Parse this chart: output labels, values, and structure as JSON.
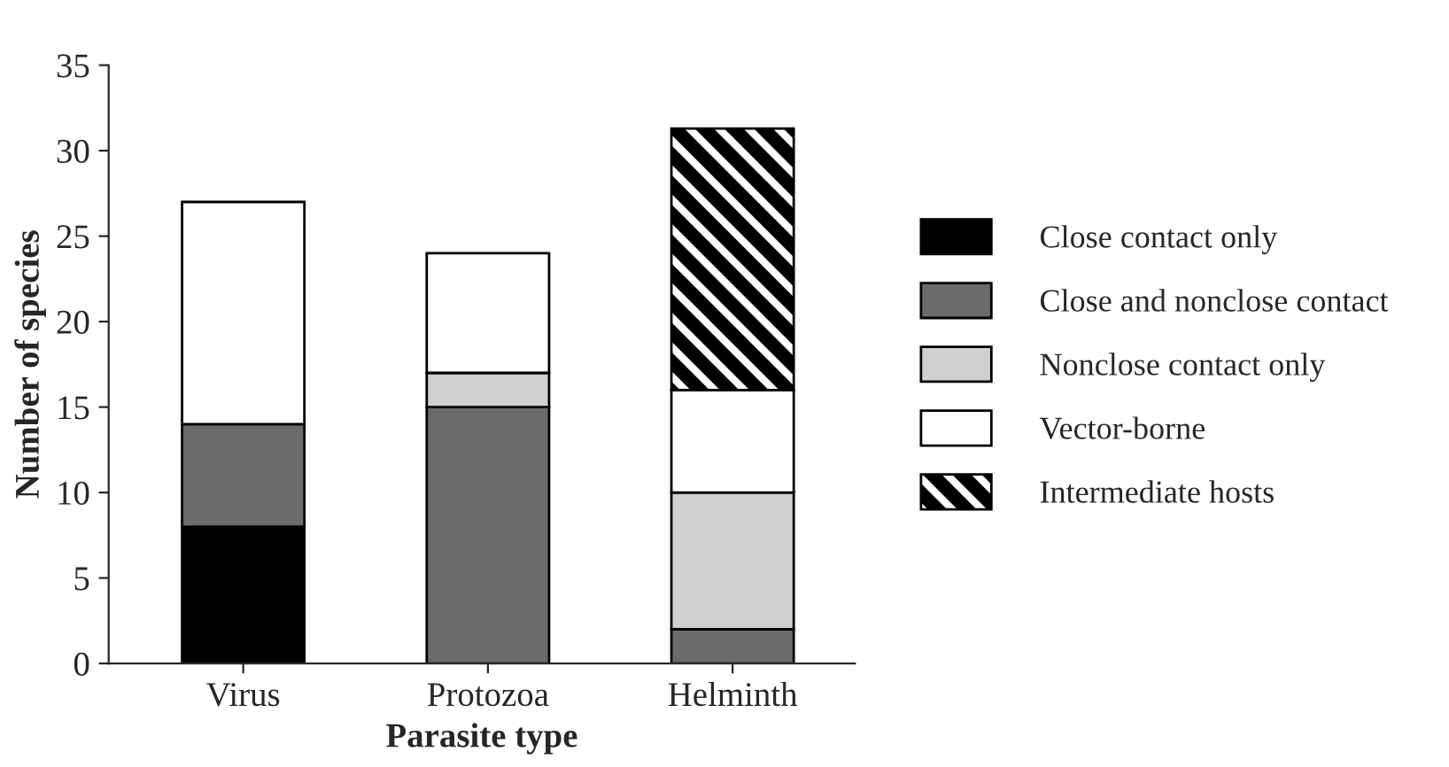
{
  "chart_data": {
    "type": "bar",
    "stacked": true,
    "xlabel": "Parasite type",
    "ylabel": "Number of species",
    "categories": [
      "Virus",
      "Protozoa",
      "Helminth"
    ],
    "series": [
      {
        "name": "Close contact only",
        "color": "#000000",
        "values": [
          8,
          0,
          0
        ]
      },
      {
        "name": "Close and nonclose contact",
        "color": "#6b6b6b",
        "values": [
          6,
          15,
          2
        ]
      },
      {
        "name": "Nonclose contact only",
        "color": "#d0d0d0",
        "values": [
          0,
          2,
          8
        ]
      },
      {
        "name": "Vector-borne",
        "color": "#ffffff",
        "values": [
          13,
          7,
          6
        ]
      },
      {
        "name": "Intermediate hosts",
        "color": "#000000",
        "values": [
          0,
          0,
          15.3
        ]
      }
    ],
    "ylim": [
      0,
      35
    ],
    "yticks": [
      0,
      5,
      10,
      15,
      20,
      25,
      30,
      35
    ],
    "grid": false,
    "legend": "right"
  }
}
